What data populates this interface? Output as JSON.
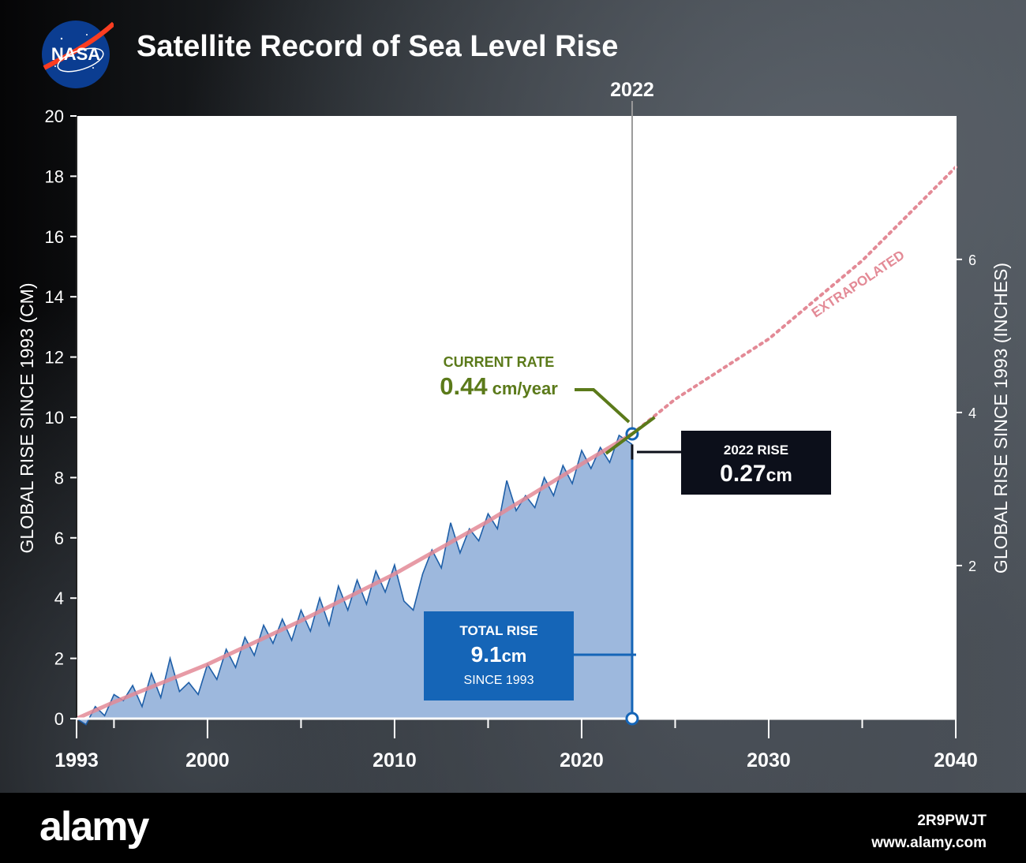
{
  "header": {
    "title": "Satellite Record of Sea Level Rise",
    "logo_text": "NASA"
  },
  "footer": {
    "brand": "alamy",
    "image_id": "2R9PWJT",
    "site": "www.alamy.com"
  },
  "colors": {
    "observed_fill": "#9db8dd",
    "observed_line": "#1f5fa8",
    "trend": "#e38a96",
    "rate": "#5b7a1a",
    "total_box": "#1565b7",
    "rise_box": "#0c0f1a"
  },
  "chart_data": {
    "type": "area",
    "title": "Satellite Record of Sea Level Rise",
    "ylabel": "GLOBAL RISE SINCE 1993 (CM)",
    "ylabel_right": "GLOBAL RISE SINCE 1993 (INCHES)",
    "xlim": [
      1993,
      2040
    ],
    "ylim": [
      0,
      20
    ],
    "x_ticks": [
      "1993",
      "2000",
      "2010",
      "2020",
      "2030",
      "2040"
    ],
    "y_ticks": [
      "0",
      "2",
      "4",
      "6",
      "8",
      "10",
      "12",
      "14",
      "16",
      "18",
      "20"
    ],
    "y_ticks_right": [
      "2",
      "4",
      "6"
    ],
    "marker_year": "2022",
    "extrapolated_label": "EXTRAPOLATED",
    "series": [
      {
        "type": "area",
        "x": [
          1993.0,
          1993.5,
          1994.0,
          1994.5,
          1995.0,
          1995.5,
          1996.0,
          1996.5,
          1997.0,
          1997.5,
          1998.0,
          1998.5,
          1999.0,
          1999.5,
          2000.0,
          2000.5,
          2001.0,
          2001.5,
          2002.0,
          2002.5,
          2003.0,
          2003.5,
          2004.0,
          2004.5,
          2005.0,
          2005.5,
          2006.0,
          2006.5,
          2007.0,
          2007.5,
          2008.0,
          2008.5,
          2009.0,
          2009.5,
          2010.0,
          2010.5,
          2011.0,
          2011.5,
          2012.0,
          2012.5,
          2013.0,
          2013.5,
          2014.0,
          2014.5,
          2015.0,
          2015.5,
          2016.0,
          2016.5,
          2017.0,
          2017.5,
          2018.0,
          2018.5,
          2019.0,
          2019.5,
          2020.0,
          2020.5,
          2021.0,
          2021.5,
          2022.0,
          2022.7
        ],
        "values": [
          0.0,
          -0.2,
          0.4,
          0.1,
          0.8,
          0.6,
          1.1,
          0.4,
          1.5,
          0.7,
          2.0,
          0.9,
          1.2,
          0.8,
          1.8,
          1.3,
          2.3,
          1.7,
          2.7,
          2.1,
          3.1,
          2.5,
          3.3,
          2.6,
          3.6,
          2.9,
          4.0,
          3.1,
          4.4,
          3.6,
          4.6,
          3.8,
          4.9,
          4.2,
          5.1,
          3.9,
          3.6,
          4.8,
          5.6,
          5.0,
          6.5,
          5.5,
          6.3,
          5.9,
          6.8,
          6.3,
          7.9,
          6.9,
          7.4,
          7.0,
          8.0,
          7.4,
          8.4,
          7.8,
          8.9,
          8.3,
          9.0,
          8.5,
          9.4,
          9.1
        ]
      },
      {
        "type": "trend",
        "x": [
          1993,
          1995,
          2000,
          2005,
          2010,
          2015,
          2020,
          2022.7
        ],
        "values": [
          0.0,
          0.55,
          1.8,
          3.25,
          4.8,
          6.55,
          8.45,
          9.45
        ]
      },
      {
        "type": "extrapolated",
        "x": [
          2022.7,
          2025,
          2030,
          2035,
          2040
        ],
        "values": [
          9.45,
          10.6,
          12.6,
          15.2,
          18.3
        ]
      }
    ],
    "annotations": {
      "current_rate": {
        "label": "CURRENT RATE",
        "value": "0.44",
        "unit": "cm/year"
      },
      "rise_2022": {
        "label": "2022 RISE",
        "value": "0.27",
        "unit": "cm"
      },
      "total_rise": {
        "label": "TOTAL RISE",
        "value": "9.1",
        "unit": "cm",
        "since": "SINCE 1993"
      }
    }
  }
}
